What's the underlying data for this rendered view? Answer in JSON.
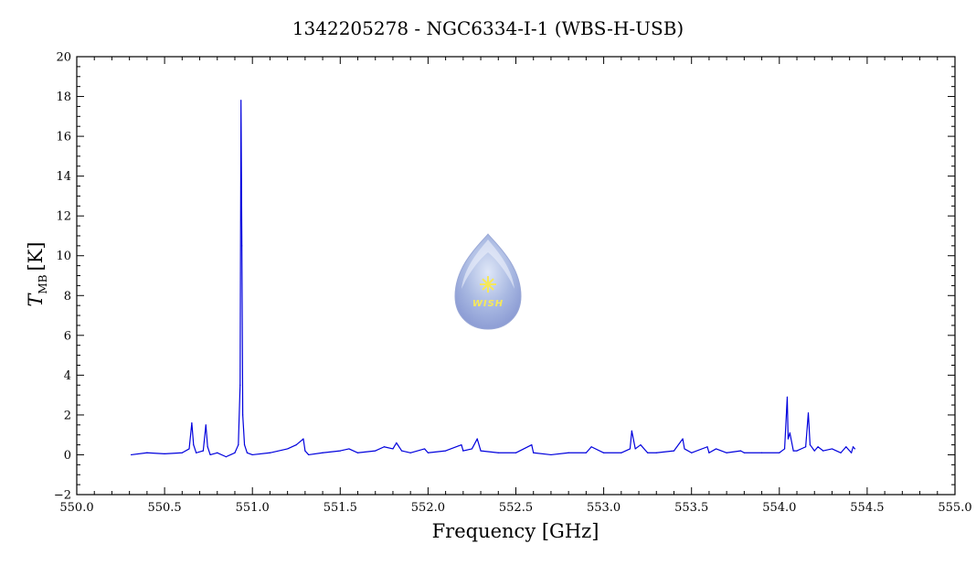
{
  "chart_data": {
    "type": "line",
    "title": "1342205278 - NGC6334-I-1 (WBS-H-USB)",
    "xlabel": "Frequency [GHz]",
    "ylabel": {
      "symbol": "T",
      "subscript": "MB",
      "unit": "[K]"
    },
    "xlim": [
      550.0,
      555.0
    ],
    "ylim": [
      -2,
      20
    ],
    "xticks": [
      550.0,
      550.5,
      551.0,
      551.5,
      552.0,
      552.5,
      553.0,
      553.5,
      554.0,
      554.5,
      555.0
    ],
    "xtick_labels": [
      "550.0",
      "550.5",
      "551.0",
      "551.5",
      "552.0",
      "552.5",
      "553.0",
      "553.5",
      "554.0",
      "554.5",
      "555.0"
    ],
    "yticks": [
      -2,
      0,
      2,
      4,
      6,
      8,
      10,
      12,
      14,
      16,
      18,
      20
    ],
    "ytick_labels": [
      "−2",
      "0",
      "2",
      "4",
      "6",
      "8",
      "10",
      "12",
      "14",
      "16",
      "18",
      "20"
    ],
    "grid": false,
    "series": [
      {
        "color": "#0000dd",
        "x": [
          550.31,
          550.4,
          550.5,
          550.6,
          550.64,
          550.655,
          550.665,
          550.68,
          550.72,
          550.735,
          550.745,
          550.76,
          550.8,
          550.85,
          550.9,
          550.92,
          550.93,
          550.935,
          550.94,
          550.945,
          550.955,
          550.97,
          551.0,
          551.1,
          551.2,
          551.25,
          551.29,
          551.3,
          551.32,
          551.4,
          551.5,
          551.55,
          551.6,
          551.7,
          551.75,
          551.8,
          551.82,
          551.85,
          551.9,
          551.98,
          552.0,
          552.1,
          552.19,
          552.2,
          552.25,
          552.28,
          552.3,
          552.4,
          552.5,
          552.59,
          552.6,
          552.7,
          552.8,
          552.9,
          552.93,
          553.0,
          553.1,
          553.15,
          553.16,
          553.18,
          553.21,
          553.25,
          553.3,
          553.4,
          553.45,
          553.46,
          553.5,
          553.59,
          553.6,
          553.64,
          553.7,
          553.78,
          553.8,
          553.9,
          554.0,
          554.03,
          554.045,
          554.05,
          554.06,
          554.08,
          554.1,
          554.15,
          554.165,
          554.175,
          554.2,
          554.22,
          554.25,
          554.3,
          554.35,
          554.38,
          554.41,
          554.42,
          554.43
        ],
        "y": [
          0.0,
          0.1,
          0.05,
          0.1,
          0.3,
          1.6,
          0.5,
          0.1,
          0.2,
          1.5,
          0.4,
          0.0,
          0.1,
          -0.1,
          0.1,
          0.5,
          3.5,
          17.8,
          10.5,
          2.0,
          0.5,
          0.1,
          0.0,
          0.1,
          0.3,
          0.5,
          0.8,
          0.2,
          0.0,
          0.1,
          0.2,
          0.3,
          0.1,
          0.2,
          0.4,
          0.3,
          0.6,
          0.2,
          0.1,
          0.3,
          0.1,
          0.2,
          0.5,
          0.2,
          0.3,
          0.8,
          0.2,
          0.1,
          0.1,
          0.5,
          0.1,
          0.0,
          0.1,
          0.1,
          0.4,
          0.1,
          0.1,
          0.3,
          1.2,
          0.3,
          0.5,
          0.1,
          0.1,
          0.2,
          0.8,
          0.3,
          0.1,
          0.4,
          0.1,
          0.3,
          0.1,
          0.2,
          0.1,
          0.1,
          0.1,
          0.3,
          2.9,
          0.8,
          1.1,
          0.2,
          0.2,
          0.4,
          2.1,
          0.5,
          0.2,
          0.4,
          0.2,
          0.3,
          0.1,
          0.4,
          0.1,
          0.4,
          0.3
        ]
      }
    ]
  },
  "logo": {
    "text": "WISH"
  }
}
